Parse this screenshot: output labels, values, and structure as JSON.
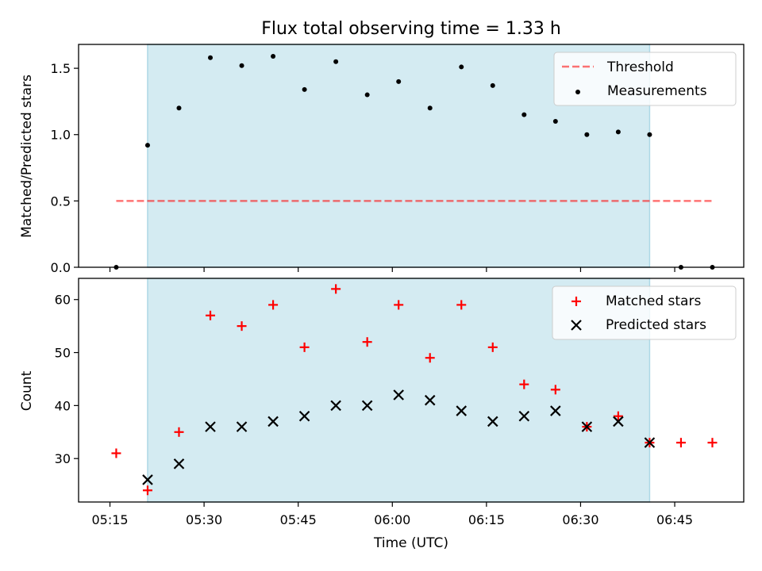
{
  "figure_title": "Flux total observing time = 1.33 h",
  "x_axis_label": "Time (UTC)",
  "x_ticks": [
    "05:15",
    "05:30",
    "05:45",
    "06:00",
    "06:15",
    "06:30",
    "06:45"
  ],
  "colors": {
    "shade": "#add8e6",
    "threshold": "#ff0000",
    "measurement": "#000000",
    "matched": "#ff0000",
    "predicted": "#000000"
  },
  "chart_data": [
    {
      "type": "scatter",
      "title": "Flux total observing time = 1.33 h",
      "xlabel": "",
      "ylabel": "Matched/Predicted stars",
      "ylim": [
        0,
        1.68
      ],
      "xlim": [
        "05:10",
        "06:56"
      ],
      "yticks": [
        "0.0",
        "0.5",
        "1.0",
        "1.5"
      ],
      "grid": false,
      "legend": "top-right",
      "shaded_interval": [
        "05:21",
        "06:41"
      ],
      "threshold": {
        "name": "Threshold",
        "y": 0.5,
        "x": [
          "05:16",
          "06:51"
        ],
        "style": "dashed"
      },
      "series": [
        {
          "name": "Measurements",
          "x": [
            "05:16",
            "05:21",
            "05:26",
            "05:31",
            "05:36",
            "05:41",
            "05:46",
            "05:51",
            "05:56",
            "06:01",
            "06:06",
            "06:11",
            "06:16",
            "06:21",
            "06:26",
            "06:31",
            "06:36",
            "06:41",
            "06:46",
            "06:51"
          ],
          "y": [
            0,
            0.92,
            1.2,
            1.58,
            1.52,
            1.59,
            1.34,
            1.55,
            1.3,
            1.4,
            1.2,
            1.51,
            1.37,
            1.15,
            1.1,
            1.0,
            1.02,
            1.0,
            0,
            0
          ]
        }
      ]
    },
    {
      "type": "scatter",
      "title": "",
      "xlabel": "Time (UTC)",
      "ylabel": "Count",
      "ylim": [
        21.8,
        64
      ],
      "xlim": [
        "05:10",
        "06:56"
      ],
      "yticks": [
        "30",
        "40",
        "50",
        "60"
      ],
      "grid": false,
      "legend": "top-right",
      "shaded_interval": [
        "05:21",
        "06:41"
      ],
      "series": [
        {
          "name": "Matched stars",
          "marker": "+",
          "x": [
            "05:16",
            "05:21",
            "05:26",
            "05:31",
            "05:36",
            "05:41",
            "05:46",
            "05:51",
            "05:56",
            "06:01",
            "06:06",
            "06:11",
            "06:16",
            "06:21",
            "06:26",
            "06:31",
            "06:36",
            "06:41",
            "06:46",
            "06:51"
          ],
          "y": [
            31,
            24,
            35,
            57,
            55,
            59,
            51,
            62,
            52,
            59,
            49,
            59,
            51,
            44,
            43,
            36,
            38,
            33,
            33,
            33
          ]
        },
        {
          "name": "Predicted stars",
          "marker": "x",
          "x": [
            "05:21",
            "05:26",
            "05:31",
            "05:36",
            "05:41",
            "05:46",
            "05:51",
            "05:56",
            "06:01",
            "06:06",
            "06:11",
            "06:16",
            "06:21",
            "06:26",
            "06:31",
            "06:36",
            "06:41"
          ],
          "y": [
            26,
            29,
            36,
            36,
            37,
            38,
            40,
            40,
            42,
            41,
            39,
            37,
            38,
            39,
            36,
            37,
            33
          ]
        }
      ]
    }
  ]
}
